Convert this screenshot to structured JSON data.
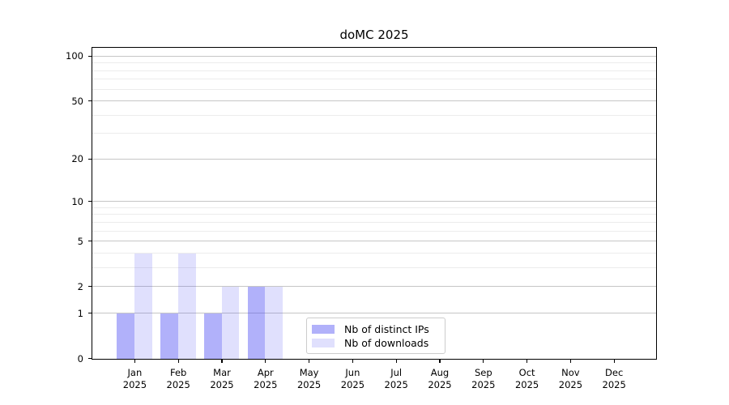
{
  "figure": {
    "background": "#ffffff"
  },
  "header": {
    "title": "doMC 2025"
  },
  "legend": {
    "items": [
      {
        "label": "Nb of distinct IPs",
        "color": "rgba(70,70,242,0.42)"
      },
      {
        "label": "Nb of downloads",
        "color": "rgba(70,70,242,0.17)"
      }
    ]
  },
  "chart_data": {
    "type": "bar",
    "title": "doMC 2025",
    "x_categories": [
      [
        "Jan",
        "2025"
      ],
      [
        "Feb",
        "2025"
      ],
      [
        "Mar",
        "2025"
      ],
      [
        "Apr",
        "2025"
      ],
      [
        "May",
        "2025"
      ],
      [
        "Jun",
        "2025"
      ],
      [
        "Jul",
        "2025"
      ],
      [
        "Aug",
        "2025"
      ],
      [
        "Sep",
        "2025"
      ],
      [
        "Oct",
        "2025"
      ],
      [
        "Nov",
        "2025"
      ],
      [
        "Dec",
        "2025"
      ]
    ],
    "series": [
      {
        "name": "Nb of distinct IPs",
        "color": "rgba(70,70,242,0.42)",
        "values": [
          1,
          1,
          1,
          2,
          0,
          0,
          0,
          0,
          0,
          0,
          0,
          0
        ]
      },
      {
        "name": "Nb of downloads",
        "color": "rgba(70,70,242,0.17)",
        "values": [
          4,
          4,
          2,
          2,
          0,
          0,
          0,
          0,
          0,
          0,
          0,
          0
        ]
      }
    ],
    "y_scale": "log10(1+x)",
    "y_major_ticks": [
      0,
      1,
      2,
      5,
      10,
      20,
      50,
      100
    ],
    "y_minor_ticks": [
      3,
      4,
      6,
      7,
      8,
      9,
      30,
      40,
      60,
      70,
      80,
      90
    ],
    "ylim": [
      0,
      115
    ],
    "grid": true,
    "legend_position": "lower center",
    "colors": {
      "grid_major": "#c6c6c6",
      "grid_minor": "#ececec",
      "axis": "#000000"
    }
  }
}
